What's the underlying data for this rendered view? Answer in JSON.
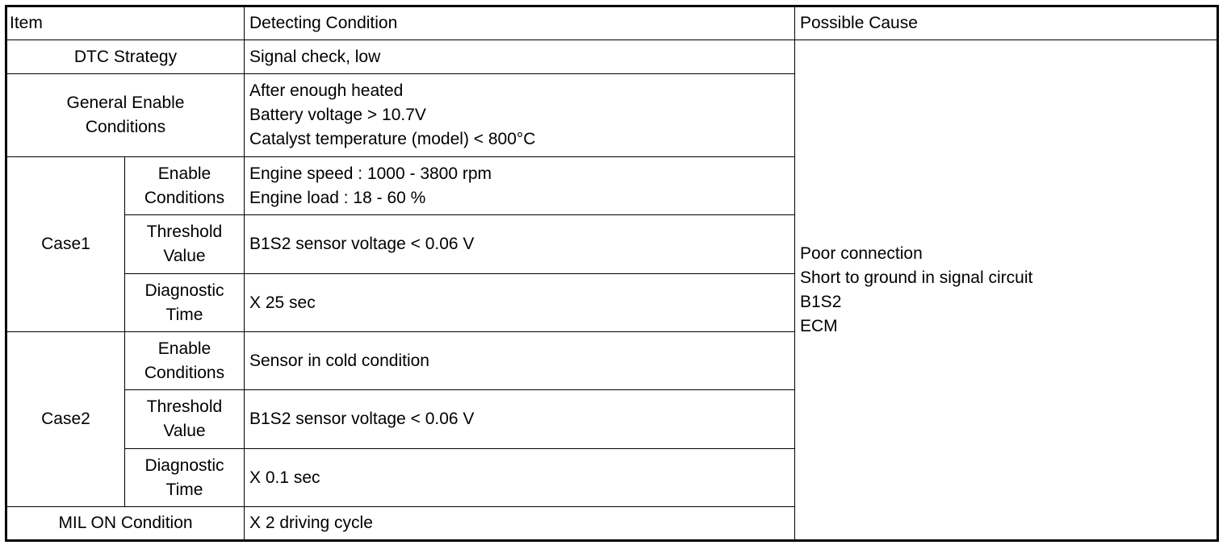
{
  "header": {
    "item": "Item",
    "condition": "Detecting Condition",
    "cause": "Possible Cause"
  },
  "rows": [
    {
      "item": [
        "DTC Strategy"
      ],
      "condition": [
        "Signal check, low"
      ]
    },
    {
      "item": [
        "General Enable",
        "Conditions"
      ],
      "condition": [
        "After enough heated",
        "Battery voltage > 10.7V",
        "Catalyst temperature (model) < 800°C"
      ]
    },
    {
      "group": "Case1",
      "sub": [
        {
          "item": [
            "Enable",
            "Conditions"
          ],
          "condition": [
            "Engine speed : 1000 - 3800 rpm",
            "Engine load : 18 - 60 %"
          ]
        },
        {
          "item": [
            "Threshold",
            "Value"
          ],
          "condition": [
            "B1S2 sensor voltage < 0.06 V"
          ]
        },
        {
          "item": [
            "Diagnostic",
            "Time"
          ],
          "condition": [
            "X 25 sec"
          ]
        }
      ]
    },
    {
      "group": "Case2",
      "sub": [
        {
          "item": [
            "Enable",
            "Conditions"
          ],
          "condition": [
            "Sensor in cold condition"
          ]
        },
        {
          "item": [
            "Threshold",
            "Value"
          ],
          "condition": [
            "B1S2 sensor voltage < 0.06 V"
          ]
        },
        {
          "item": [
            "Diagnostic",
            "Time"
          ],
          "condition": [
            "X 0.1 sec"
          ]
        }
      ]
    },
    {
      "item": [
        "MIL ON Condition"
      ],
      "condition": [
        "X 2 driving cycle"
      ]
    }
  ],
  "cause": [
    "Poor connection",
    "Short to ground in signal circuit",
    "B1S2",
    "ECM"
  ]
}
